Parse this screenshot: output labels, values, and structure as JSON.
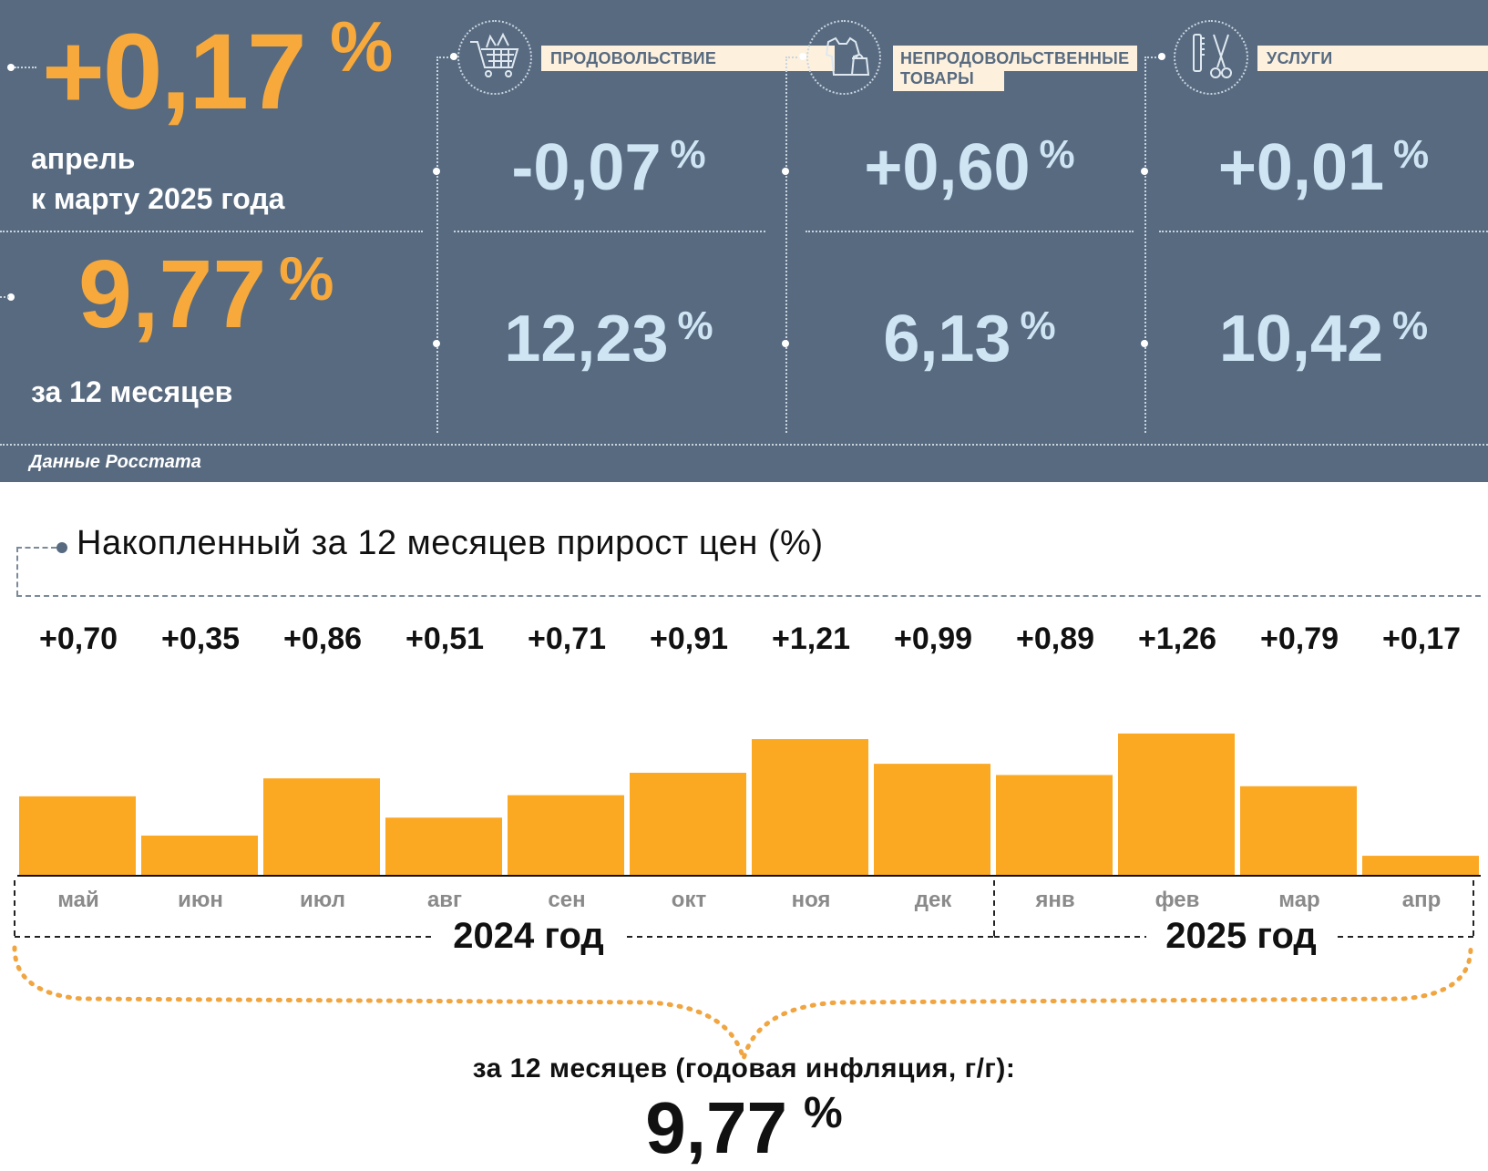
{
  "header": {
    "monthly_value": "+0,17",
    "monthly_pct": "%",
    "monthly_caption_1": "апрель",
    "monthly_caption_2": "к марту 2025 года",
    "annual_value": "9,77",
    "annual_pct": "%",
    "annual_caption": "за 12 месяцев",
    "source": "Данные Росстата",
    "categories": [
      {
        "label": "ПРОДОВОЛЬСТВИЕ",
        "icon": "shopping-cart-icon",
        "monthly": "-0,07",
        "annual": "12,23",
        "pct": "%"
      },
      {
        "label_line1": "НЕПРОДОВОЛЬСТВЕННЫЕ",
        "label_line2": "ТОВАРЫ",
        "icon": "clothing-bag-icon",
        "monthly": "+0,60",
        "annual": "6,13",
        "pct": "%"
      },
      {
        "label": "УСЛУГИ",
        "icon": "comb-scissors-icon",
        "monthly": "+0,01",
        "annual": "10,42",
        "pct": "%"
      }
    ]
  },
  "chart_data": {
    "type": "bar",
    "title": "Накопленный за 12 месяцев прирост цен (%)",
    "categories": [
      "май",
      "июн",
      "июл",
      "авг",
      "сен",
      "окт",
      "ноя",
      "дек",
      "янв",
      "фев",
      "мар",
      "апр"
    ],
    "values": [
      0.7,
      0.35,
      0.86,
      0.51,
      0.71,
      0.91,
      1.21,
      0.99,
      0.89,
      1.26,
      0.79,
      0.17
    ],
    "value_labels": [
      "+0,70",
      "+0,35",
      "+0,86",
      "+0,51",
      "+0,71",
      "+0,91",
      "+1,21",
      "+0,99",
      "+0,89",
      "+1,26",
      "+0,79",
      "+0,17"
    ],
    "year_groups": [
      "2024 год",
      "2025 год"
    ],
    "ylim": [
      0,
      1.3
    ],
    "bar_color": "#fba823",
    "summary_caption": "за 12 месяцев (годовая инфляция, г/г):",
    "summary_value": "9,77",
    "summary_pct": "%"
  },
  "colors": {
    "panel": "#576a80",
    "accent_orange": "#f7a93c",
    "light_blue": "#cfe5f3",
    "label_bg": "#fdf1de"
  }
}
